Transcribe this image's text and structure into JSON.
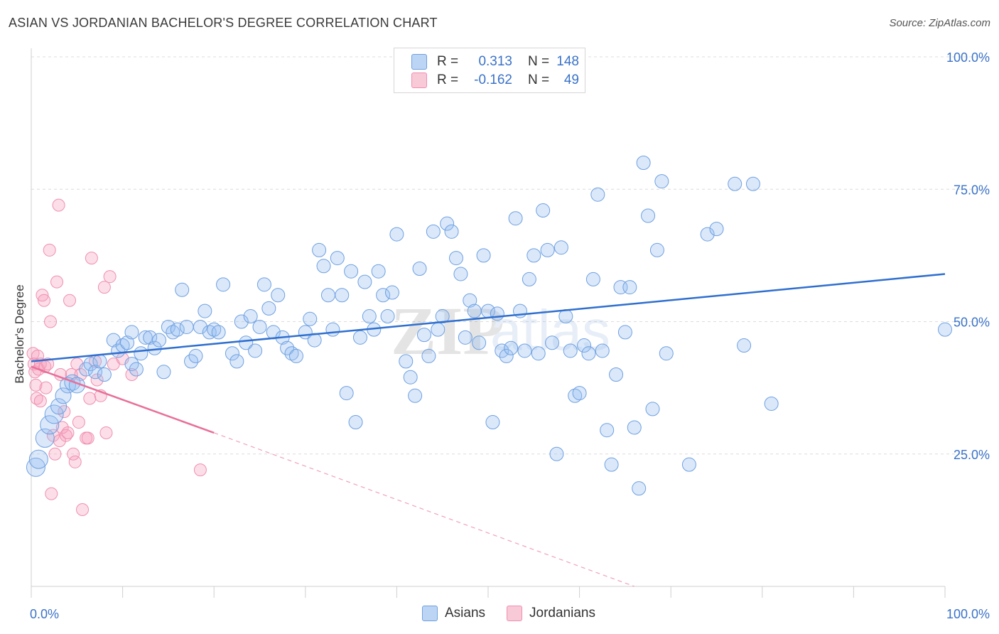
{
  "header": {
    "title": "ASIAN VS JORDANIAN BACHELOR'S DEGREE CORRELATION CHART",
    "source": "Source: ZipAtlas.com"
  },
  "legend": {
    "rows": [
      {
        "r_label": "R =",
        "r_value": "0.313",
        "n_label": "N =",
        "n_value": "148",
        "color": "#a9c8f0"
      },
      {
        "r_label": "R =",
        "r_value": "-0.162",
        "n_label": "N =",
        "n_value": "49",
        "color": "#f5b6c8"
      }
    ]
  },
  "bottom_legend": {
    "asians": "Asians",
    "jordanians": "Jordanians"
  },
  "watermark": {
    "zip": "ZIP",
    "atlas": "atlas"
  },
  "chart_data": {
    "type": "scatter",
    "title": "ASIAN VS JORDANIAN BACHELOR'S DEGREE CORRELATION CHART",
    "xlabel": "",
    "ylabel": "Bachelor's Degree",
    "xlim": [
      0,
      100
    ],
    "ylim": [
      0,
      100
    ],
    "x_tick_labels": [
      "0.0%",
      "100.0%"
    ],
    "y_tick_labels": [
      "25.0%",
      "50.0%",
      "75.0%",
      "100.0%"
    ],
    "y_ticks": [
      25,
      50,
      75,
      100
    ],
    "grid": true,
    "legend_position": "top-center",
    "series": [
      {
        "name": "Asians",
        "color": "#6fa0e0",
        "r": 0.313,
        "n": 148,
        "trend": [
          [
            0,
            42.5
          ],
          [
            100,
            59
          ]
        ],
        "points": [
          [
            0.5,
            22.5
          ],
          [
            0.8,
            24
          ],
          [
            1.5,
            28
          ],
          [
            2,
            30.5
          ],
          [
            2.5,
            32.5
          ],
          [
            3,
            34
          ],
          [
            3.5,
            36
          ],
          [
            4,
            38
          ],
          [
            4.5,
            38.5
          ],
          [
            5,
            38
          ],
          [
            6,
            41
          ],
          [
            6.5,
            42
          ],
          [
            7,
            40.5
          ],
          [
            7.5,
            42.5
          ],
          [
            8,
            40
          ],
          [
            9,
            46.5
          ],
          [
            9.5,
            44.5
          ],
          [
            10,
            45.5
          ],
          [
            10.5,
            46
          ],
          [
            11,
            48
          ],
          [
            11,
            42
          ],
          [
            11.5,
            41
          ],
          [
            12,
            44
          ],
          [
            12.5,
            47
          ],
          [
            13,
            47
          ],
          [
            13.5,
            45
          ],
          [
            14,
            46.5
          ],
          [
            14.5,
            40.5
          ],
          [
            15,
            49
          ],
          [
            15.5,
            48
          ],
          [
            16,
            48.5
          ],
          [
            16.5,
            56
          ],
          [
            17,
            49
          ],
          [
            17.5,
            42.5
          ],
          [
            18,
            43.5
          ],
          [
            18.5,
            49
          ],
          [
            19,
            52
          ],
          [
            19.5,
            48
          ],
          [
            20,
            48.5
          ],
          [
            20.5,
            48
          ],
          [
            21,
            57
          ],
          [
            22,
            44
          ],
          [
            22.5,
            42.5
          ],
          [
            23,
            50
          ],
          [
            23.5,
            46
          ],
          [
            24,
            51
          ],
          [
            24.5,
            44.5
          ],
          [
            25,
            49
          ],
          [
            25.5,
            57
          ],
          [
            26,
            52.5
          ],
          [
            26.5,
            48
          ],
          [
            27,
            55
          ],
          [
            27.5,
            47
          ],
          [
            28,
            45
          ],
          [
            28.5,
            44
          ],
          [
            29,
            43.5
          ],
          [
            30,
            48
          ],
          [
            30.5,
            50.5
          ],
          [
            31,
            46.5
          ],
          [
            31.5,
            63.5
          ],
          [
            32,
            60.5
          ],
          [
            32.5,
            55
          ],
          [
            33,
            48.5
          ],
          [
            33.5,
            62
          ],
          [
            34,
            55
          ],
          [
            34.5,
            36.5
          ],
          [
            35,
            59.5
          ],
          [
            35.5,
            31
          ],
          [
            36,
            47
          ],
          [
            36.5,
            57.5
          ],
          [
            37,
            51
          ],
          [
            37.5,
            48.5
          ],
          [
            38,
            59.5
          ],
          [
            38.5,
            55
          ],
          [
            39,
            51
          ],
          [
            39.5,
            55.5
          ],
          [
            40,
            66.5
          ],
          [
            41,
            42.5
          ],
          [
            41.5,
            39.5
          ],
          [
            42,
            36
          ],
          [
            42.5,
            60
          ],
          [
            43,
            47.5
          ],
          [
            43.5,
            43.5
          ],
          [
            44,
            67
          ],
          [
            44.5,
            48.5
          ],
          [
            45,
            51
          ],
          [
            45.5,
            68.5
          ],
          [
            46,
            67
          ],
          [
            46.5,
            62
          ],
          [
            47,
            59
          ],
          [
            47.5,
            47
          ],
          [
            48,
            54
          ],
          [
            48.5,
            52
          ],
          [
            49,
            46
          ],
          [
            49.5,
            62.5
          ],
          [
            50,
            52
          ],
          [
            50.5,
            31
          ],
          [
            51,
            51.5
          ],
          [
            51.5,
            44.5
          ],
          [
            52,
            43.5
          ],
          [
            52.5,
            45
          ],
          [
            53,
            69.5
          ],
          [
            53.5,
            52
          ],
          [
            54,
            44.5
          ],
          [
            54.5,
            58
          ],
          [
            55,
            62.5
          ],
          [
            55.5,
            44
          ],
          [
            56,
            71
          ],
          [
            56.5,
            63.5
          ],
          [
            57,
            46
          ],
          [
            57.5,
            25
          ],
          [
            58,
            64
          ],
          [
            58.5,
            51
          ],
          [
            59,
            44.5
          ],
          [
            59.5,
            36
          ],
          [
            60,
            36.5
          ],
          [
            60.5,
            45.5
          ],
          [
            61,
            44
          ],
          [
            61.5,
            58
          ],
          [
            62,
            74
          ],
          [
            62.5,
            44.5
          ],
          [
            63,
            29.5
          ],
          [
            63.5,
            23
          ],
          [
            64,
            40
          ],
          [
            64.5,
            56.5
          ],
          [
            65,
            48
          ],
          [
            65.5,
            56.5
          ],
          [
            66,
            30
          ],
          [
            66.5,
            18.5
          ],
          [
            67,
            80
          ],
          [
            67.5,
            70
          ],
          [
            68,
            33.5
          ],
          [
            68.5,
            63.5
          ],
          [
            69,
            76.5
          ],
          [
            69.5,
            44
          ],
          [
            72,
            23
          ],
          [
            74,
            66.5
          ],
          [
            75,
            67.5
          ],
          [
            77,
            76
          ],
          [
            78,
            45.5
          ],
          [
            79,
            76
          ],
          [
            81,
            34.5
          ],
          [
            100,
            48.5
          ]
        ]
      },
      {
        "name": "Jordanians",
        "color": "#f08fb0",
        "r": -0.162,
        "n": 49,
        "trend": [
          [
            0,
            41.5
          ],
          [
            20,
            29
          ]
        ],
        "trend_extension": [
          [
            20,
            29
          ],
          [
            66,
            0
          ]
        ],
        "points": [
          [
            0.2,
            44
          ],
          [
            0.3,
            42
          ],
          [
            0.4,
            40.5
          ],
          [
            0.5,
            38
          ],
          [
            0.6,
            35.5
          ],
          [
            0.7,
            43.5
          ],
          [
            0.8,
            41
          ],
          [
            1,
            42
          ],
          [
            1.2,
            55
          ],
          [
            1.4,
            54
          ],
          [
            1.5,
            41.5
          ],
          [
            1.6,
            37.5
          ],
          [
            1.8,
            42
          ],
          [
            2,
            63.5
          ],
          [
            2.1,
            50
          ],
          [
            2.2,
            17.5
          ],
          [
            2.4,
            28.5
          ],
          [
            2.6,
            25
          ],
          [
            2.8,
            57.5
          ],
          [
            3,
            72
          ],
          [
            3.1,
            27.5
          ],
          [
            3.2,
            40
          ],
          [
            3.4,
            30
          ],
          [
            3.6,
            33
          ],
          [
            3.8,
            28.5
          ],
          [
            4,
            29
          ],
          [
            4.2,
            54
          ],
          [
            4.4,
            40
          ],
          [
            4.6,
            25
          ],
          [
            4.8,
            23.5
          ],
          [
            5,
            42
          ],
          [
            5.2,
            31
          ],
          [
            5.4,
            40
          ],
          [
            5.6,
            14.5
          ],
          [
            6,
            28
          ],
          [
            6.2,
            28
          ],
          [
            6.4,
            35.5
          ],
          [
            6.6,
            62
          ],
          [
            7,
            42.5
          ],
          [
            7.2,
            39
          ],
          [
            7.6,
            36
          ],
          [
            8,
            56.5
          ],
          [
            8.2,
            29
          ],
          [
            8.6,
            58.5
          ],
          [
            9,
            42
          ],
          [
            10,
            43
          ],
          [
            11,
            40
          ],
          [
            18.5,
            22
          ],
          [
            1,
            35
          ]
        ]
      }
    ]
  }
}
